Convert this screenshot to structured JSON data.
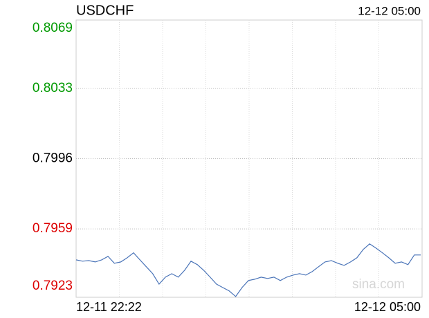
{
  "chart_data": {
    "type": "line",
    "title": "USDCHF",
    "time": "12-12 05:00",
    "watermark": "sina.com",
    "categories": [
      "12-11 22:22",
      null,
      null,
      null,
      null,
      null,
      null,
      null,
      null,
      null,
      null,
      null,
      null,
      null,
      null,
      null,
      null,
      null,
      null,
      null,
      null,
      null,
      null,
      null,
      null,
      null,
      null,
      null,
      null,
      null,
      null,
      null,
      null,
      null,
      null,
      null,
      null,
      null,
      null,
      null,
      null,
      null,
      null,
      null,
      null,
      null,
      null,
      null,
      null,
      null,
      null,
      null,
      null,
      null,
      "12-12 05:00"
    ],
    "series": [
      {
        "name": "USDCHF",
        "color": "#4a74b8",
        "values": [
          0.79427,
          0.7942,
          0.79423,
          0.79416,
          0.79427,
          0.79445,
          0.79409,
          0.79416,
          0.79438,
          0.79464,
          0.79427,
          0.79391,
          0.79354,
          0.79299,
          0.79336,
          0.79354,
          0.79336,
          0.79372,
          0.7942,
          0.79402,
          0.79372,
          0.79336,
          0.79299,
          0.79281,
          0.79263,
          0.79234,
          0.79281,
          0.79318,
          0.79325,
          0.79336,
          0.79329,
          0.79336,
          0.79318,
          0.79336,
          0.79347,
          0.79354,
          0.79347,
          0.79365,
          0.79391,
          0.79416,
          0.79423,
          0.79409,
          0.79398,
          0.79416,
          0.79438,
          0.79482,
          0.79511,
          0.79489,
          0.79464,
          0.79438,
          0.79409,
          0.79416,
          0.79402,
          0.79453,
          0.79453
        ]
      }
    ],
    "ylim": [
      0.7923,
      0.8069
    ],
    "yticks": [
      0.8069,
      0.8033,
      0.7996,
      0.7959,
      0.7923
    ],
    "ytick_colors": [
      "#009900",
      "#009900",
      "#000000",
      "#dd0000",
      "#dd0000"
    ],
    "grid": true
  }
}
